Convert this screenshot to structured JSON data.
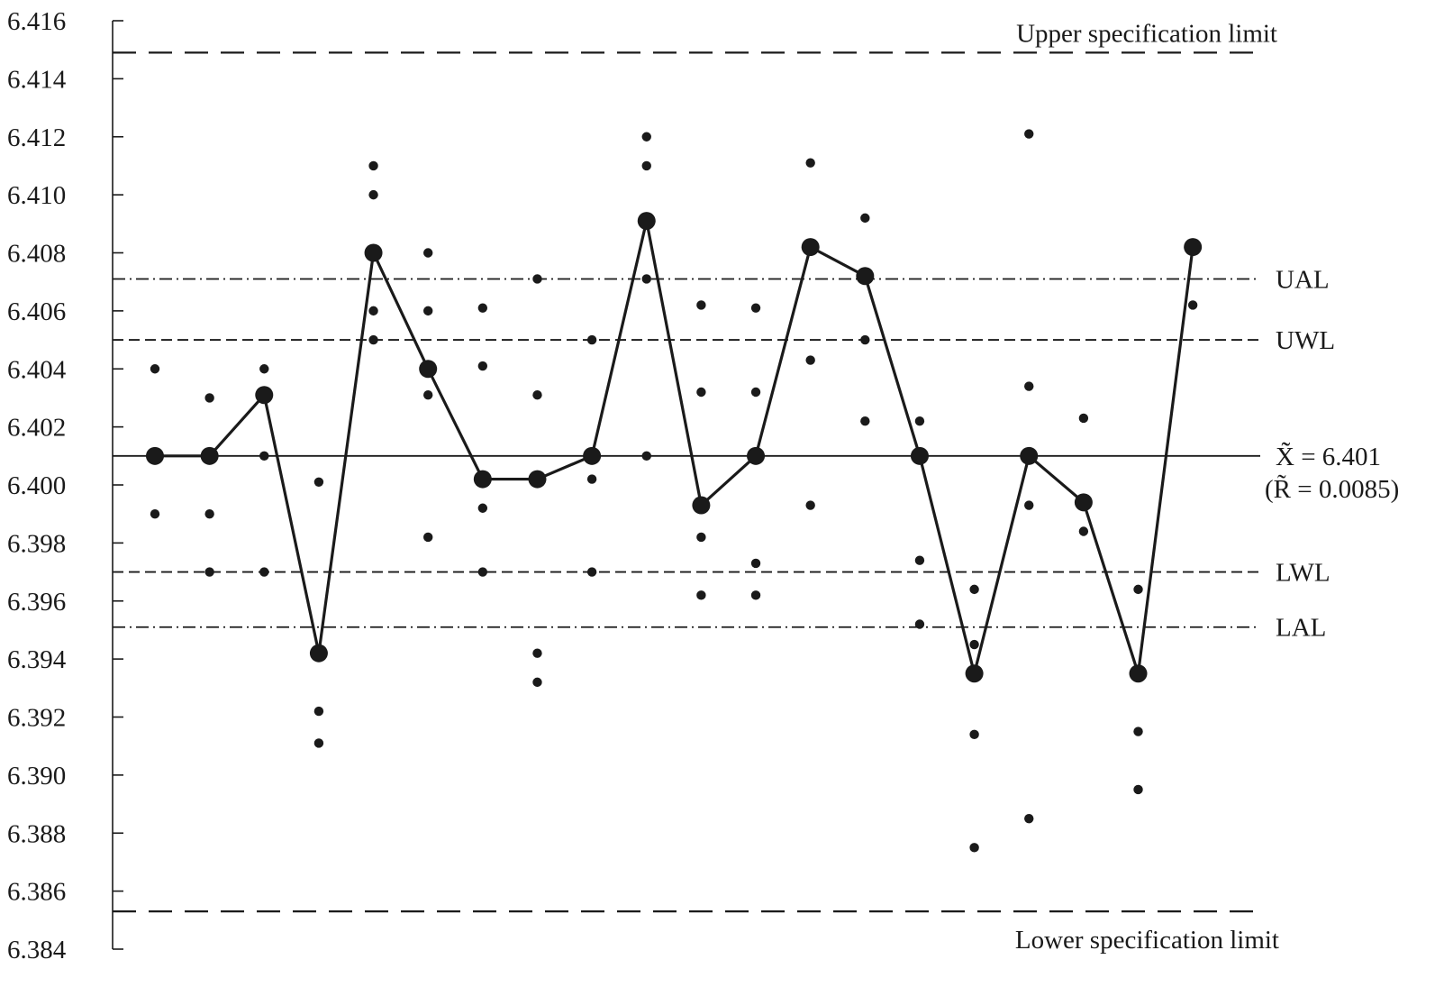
{
  "chart_data": {
    "type": "scatter",
    "title": "",
    "xlabel": "",
    "ylabel": "",
    "ylim": [
      6.384,
      6.416
    ],
    "y_ticks": [
      "6.384",
      "6.386",
      "6.388",
      "6.390",
      "6.392",
      "6.394",
      "6.396",
      "6.398",
      "6.400",
      "6.402",
      "6.404",
      "6.406",
      "6.408",
      "6.410",
      "6.412",
      "6.414",
      "6.416"
    ],
    "grid": false,
    "legend": "none",
    "subgroups": [
      {
        "x": 1,
        "median": 6.401,
        "readings": [
          6.404,
          6.401,
          6.399
        ]
      },
      {
        "x": 2,
        "median": 6.401,
        "readings": [
          6.403,
          6.401,
          6.399,
          6.397
        ]
      },
      {
        "x": 3,
        "median": 6.4031,
        "readings": [
          6.404,
          6.4031,
          6.401,
          6.397
        ]
      },
      {
        "x": 4,
        "median": 6.3942,
        "readings": [
          6.4001,
          6.3942,
          6.3922,
          6.3911
        ]
      },
      {
        "x": 5,
        "median": 6.408,
        "readings": [
          6.411,
          6.41,
          6.408,
          6.406,
          6.405
        ]
      },
      {
        "x": 6,
        "median": 6.404,
        "readings": [
          6.408,
          6.406,
          6.404,
          6.4031,
          6.3982
        ]
      },
      {
        "x": 7,
        "median": 6.4002,
        "readings": [
          6.4061,
          6.4041,
          6.4002,
          6.3992,
          6.397
        ]
      },
      {
        "x": 8,
        "median": 6.4002,
        "readings": [
          6.4071,
          6.4031,
          6.4002,
          6.3942,
          6.3932
        ]
      },
      {
        "x": 9,
        "median": 6.401,
        "readings": [
          6.405,
          6.401,
          6.4002,
          6.397
        ]
      },
      {
        "x": 10,
        "median": 6.4091,
        "readings": [
          6.412,
          6.411,
          6.4091,
          6.4071,
          6.401
        ]
      },
      {
        "x": 11,
        "median": 6.3993,
        "readings": [
          6.4062,
          6.4032,
          6.3993,
          6.3982,
          6.3962
        ]
      },
      {
        "x": 12,
        "median": 6.401,
        "readings": [
          6.4061,
          6.4032,
          6.401,
          6.3973,
          6.3962
        ]
      },
      {
        "x": 13,
        "median": 6.4082,
        "readings": [
          6.4111,
          6.4082,
          6.4043,
          6.3993
        ]
      },
      {
        "x": 14,
        "median": 6.4072,
        "readings": [
          6.4092,
          6.4072,
          6.405,
          6.4022
        ]
      },
      {
        "x": 15,
        "median": 6.401,
        "readings": [
          6.4022,
          6.401,
          6.3974,
          6.3952
        ]
      },
      {
        "x": 16,
        "median": 6.3935,
        "readings": [
          6.3964,
          6.3945,
          6.3935,
          6.3914,
          6.3875
        ]
      },
      {
        "x": 17,
        "median": 6.401,
        "readings": [
          6.4121,
          6.4034,
          6.401,
          6.3993,
          6.3885
        ]
      },
      {
        "x": 18,
        "median": 6.3994,
        "readings": [
          6.4023,
          6.3994,
          6.3984
        ]
      },
      {
        "x": 19,
        "median": 6.3935,
        "readings": [
          6.3964,
          6.3935,
          6.3915,
          6.3895
        ]
      },
      {
        "x": 20,
        "median": 6.4082,
        "readings": [
          6.4082,
          6.4062
        ]
      }
    ],
    "reference_lines": [
      {
        "id": "usl",
        "value": 6.4149,
        "style": "long-dash",
        "label": "Upper specification limit",
        "label_position": "above"
      },
      {
        "id": "ual",
        "value": 6.4071,
        "style": "dash-dot",
        "label": "UAL",
        "label_position": "right"
      },
      {
        "id": "uwl",
        "value": 6.405,
        "style": "dash",
        "label": "UWL",
        "label_position": "right"
      },
      {
        "id": "center",
        "value": 6.401,
        "style": "solid",
        "label": "X̃̃ = 6.401",
        "sublabel": "(R̃ = 0.0085)",
        "label_position": "right"
      },
      {
        "id": "lwl",
        "value": 6.397,
        "style": "dash",
        "label": "LWL",
        "label_position": "right"
      },
      {
        "id": "lal",
        "value": 6.3951,
        "style": "dash-dot",
        "label": "LAL",
        "label_position": "right"
      },
      {
        "id": "lsl",
        "value": 6.3853,
        "style": "long-dash",
        "label": "Lower specification limit",
        "label_position": "below"
      }
    ],
    "colors": {
      "ink": "#1a1a1a",
      "background": "#ffffff"
    }
  }
}
